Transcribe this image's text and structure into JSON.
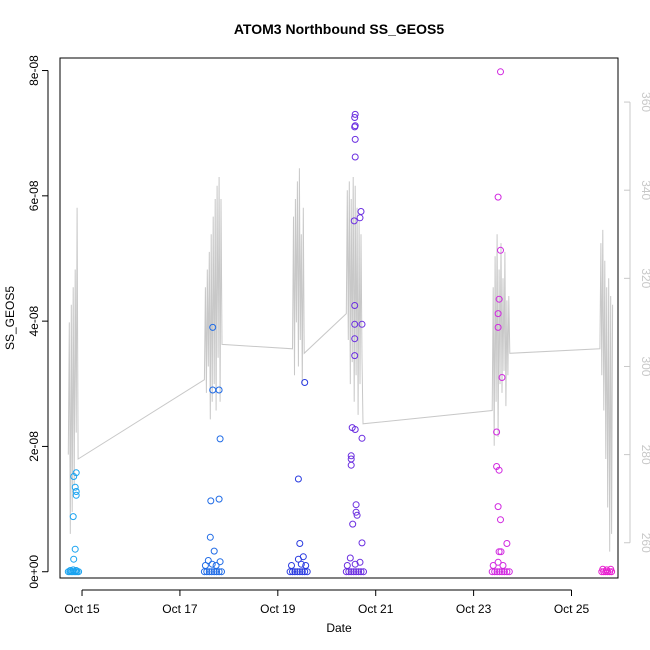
{
  "chart_data": {
    "type": "scatter",
    "title": "ATOM3 Northbound SS_GEOS5",
    "xlabel": "Date",
    "ylabel": "SS_GEOS5",
    "xlim": [
      14.55,
      25.95
    ],
    "ylim": [
      -1e-09,
      8.2e-08
    ],
    "x_ticks": [
      {
        "value": 15,
        "label": "Oct 15"
      },
      {
        "value": 17,
        "label": "Oct 17"
      },
      {
        "value": 19,
        "label": "Oct 19"
      },
      {
        "value": 21,
        "label": "Oct 21"
      },
      {
        "value": 23,
        "label": "Oct 23"
      },
      {
        "value": 25,
        "label": "Oct 25"
      }
    ],
    "y_ticks": [
      {
        "value": 0,
        "label": "0e+00"
      },
      {
        "value": 2e-08,
        "label": "2e-08"
      },
      {
        "value": 4e-08,
        "label": "4e-08"
      },
      {
        "value": 6e-08,
        "label": "6e-08"
      },
      {
        "value": 8e-08,
        "label": "8e-08"
      }
    ],
    "y2lim": [
      252,
      370
    ],
    "y2_ticks": [
      {
        "value": 260,
        "label": "260"
      },
      {
        "value": 280,
        "label": "280"
      },
      {
        "value": 300,
        "label": "300"
      },
      {
        "value": 320,
        "label": "320"
      },
      {
        "value": 340,
        "label": "340"
      },
      {
        "value": 360,
        "label": "360"
      }
    ],
    "grid": false,
    "point_colors": [
      "#1aa3f0",
      "#1f6be6",
      "#2a3be0",
      "#6a2de0",
      "#d128e0",
      "#e81fd0"
    ],
    "line_color": "#c8c8c8",
    "scatter_points": [
      {
        "x": 14.72,
        "y": 0.0,
        "c": 0
      },
      {
        "x": 14.75,
        "y": 0.0,
        "c": 0
      },
      {
        "x": 14.78,
        "y": 0.0,
        "c": 0
      },
      {
        "x": 14.81,
        "y": 0.0,
        "c": 0
      },
      {
        "x": 14.84,
        "y": 0.0,
        "c": 0
      },
      {
        "x": 14.87,
        "y": 0.0,
        "c": 0
      },
      {
        "x": 14.9,
        "y": 0.0,
        "c": 0
      },
      {
        "x": 14.93,
        "y": 0.0,
        "c": 0
      },
      {
        "x": 14.76,
        "y": 2e-10,
        "c": 0
      },
      {
        "x": 14.82,
        "y": 3e-10,
        "c": 0
      },
      {
        "x": 14.88,
        "y": 2e-10,
        "c": 0
      },
      {
        "x": 14.82,
        "y": 8.8e-09,
        "c": 0
      },
      {
        "x": 14.83,
        "y": 1.52e-08,
        "c": 0
      },
      {
        "x": 14.86,
        "y": 1.35e-08,
        "c": 0
      },
      {
        "x": 14.88,
        "y": 1.58e-08,
        "c": 0
      },
      {
        "x": 14.88,
        "y": 1.28e-08,
        "c": 0
      },
      {
        "x": 14.88,
        "y": 1.22e-08,
        "c": 0
      },
      {
        "x": 14.86,
        "y": 3.6e-09,
        "c": 0
      },
      {
        "x": 14.83,
        "y": 2e-09,
        "c": 0
      },
      {
        "x": 17.5,
        "y": 0.0,
        "c": 1
      },
      {
        "x": 17.55,
        "y": 0.0,
        "c": 1
      },
      {
        "x": 17.6,
        "y": 0.0,
        "c": 1
      },
      {
        "x": 17.65,
        "y": 0.0,
        "c": 1
      },
      {
        "x": 17.7,
        "y": 0.0,
        "c": 1
      },
      {
        "x": 17.75,
        "y": 0.0,
        "c": 1
      },
      {
        "x": 17.8,
        "y": 0.0,
        "c": 1
      },
      {
        "x": 17.85,
        "y": 0.0,
        "c": 1
      },
      {
        "x": 17.52,
        "y": 1e-09,
        "c": 1
      },
      {
        "x": 17.58,
        "y": 1.8e-09,
        "c": 1
      },
      {
        "x": 17.66,
        "y": 1.2e-09,
        "c": 1
      },
      {
        "x": 17.74,
        "y": 1e-09,
        "c": 1
      },
      {
        "x": 17.82,
        "y": 1.6e-09,
        "c": 1
      },
      {
        "x": 17.62,
        "y": 5.5e-09,
        "c": 1
      },
      {
        "x": 17.7,
        "y": 3.3e-09,
        "c": 1
      },
      {
        "x": 17.63,
        "y": 1.13e-08,
        "c": 1
      },
      {
        "x": 17.8,
        "y": 1.16e-08,
        "c": 1
      },
      {
        "x": 17.82,
        "y": 2.12e-08,
        "c": 1
      },
      {
        "x": 17.67,
        "y": 2.9e-08,
        "c": 1
      },
      {
        "x": 17.8,
        "y": 2.9e-08,
        "c": 1
      },
      {
        "x": 17.67,
        "y": 3.9e-08,
        "c": 1
      },
      {
        "x": 19.25,
        "y": 0.0,
        "c": 2
      },
      {
        "x": 19.3,
        "y": 0.0,
        "c": 2
      },
      {
        "x": 19.35,
        "y": 0.0,
        "c": 2
      },
      {
        "x": 19.4,
        "y": 0.0,
        "c": 2
      },
      {
        "x": 19.45,
        "y": 0.0,
        "c": 2
      },
      {
        "x": 19.5,
        "y": 0.0,
        "c": 2
      },
      {
        "x": 19.55,
        "y": 0.0,
        "c": 2
      },
      {
        "x": 19.6,
        "y": 0.0,
        "c": 2
      },
      {
        "x": 19.28,
        "y": 1e-09,
        "c": 2
      },
      {
        "x": 19.42,
        "y": 2e-09,
        "c": 2
      },
      {
        "x": 19.48,
        "y": 1.2e-09,
        "c": 2
      },
      {
        "x": 19.52,
        "y": 2.4e-09,
        "c": 2
      },
      {
        "x": 19.57,
        "y": 1e-09,
        "c": 2
      },
      {
        "x": 19.45,
        "y": 4.5e-09,
        "c": 2
      },
      {
        "x": 19.42,
        "y": 1.48e-08,
        "c": 2
      },
      {
        "x": 19.55,
        "y": 3.02e-08,
        "c": 2
      },
      {
        "x": 20.4,
        "y": 0.0,
        "c": 3
      },
      {
        "x": 20.45,
        "y": 0.0,
        "c": 3
      },
      {
        "x": 20.5,
        "y": 0.0,
        "c": 3
      },
      {
        "x": 20.55,
        "y": 0.0,
        "c": 3
      },
      {
        "x": 20.6,
        "y": 0.0,
        "c": 3
      },
      {
        "x": 20.65,
        "y": 0.0,
        "c": 3
      },
      {
        "x": 20.7,
        "y": 0.0,
        "c": 3
      },
      {
        "x": 20.75,
        "y": 0.0,
        "c": 3
      },
      {
        "x": 20.42,
        "y": 1e-09,
        "c": 3
      },
      {
        "x": 20.48,
        "y": 2.2e-09,
        "c": 3
      },
      {
        "x": 20.58,
        "y": 1.2e-09,
        "c": 3
      },
      {
        "x": 20.68,
        "y": 1.5e-09,
        "c": 3
      },
      {
        "x": 20.72,
        "y": 4.6e-09,
        "c": 3
      },
      {
        "x": 20.53,
        "y": 7.6e-09,
        "c": 3
      },
      {
        "x": 20.6,
        "y": 9.5e-09,
        "c": 3
      },
      {
        "x": 20.62,
        "y": 9e-09,
        "c": 3
      },
      {
        "x": 20.6,
        "y": 1.07e-08,
        "c": 3
      },
      {
        "x": 20.5,
        "y": 1.7e-08,
        "c": 3
      },
      {
        "x": 20.5,
        "y": 1.8e-08,
        "c": 3
      },
      {
        "x": 20.5,
        "y": 1.85e-08,
        "c": 3
      },
      {
        "x": 20.52,
        "y": 2.3e-08,
        "c": 3
      },
      {
        "x": 20.58,
        "y": 2.27e-08,
        "c": 3
      },
      {
        "x": 20.72,
        "y": 2.13e-08,
        "c": 3
      },
      {
        "x": 20.57,
        "y": 3.45e-08,
        "c": 3
      },
      {
        "x": 20.57,
        "y": 3.72e-08,
        "c": 3
      },
      {
        "x": 20.57,
        "y": 3.95e-08,
        "c": 3
      },
      {
        "x": 20.57,
        "y": 4.25e-08,
        "c": 3
      },
      {
        "x": 20.72,
        "y": 3.95e-08,
        "c": 3
      },
      {
        "x": 20.56,
        "y": 5.6e-08,
        "c": 3
      },
      {
        "x": 20.68,
        "y": 5.65e-08,
        "c": 3
      },
      {
        "x": 20.7,
        "y": 5.75e-08,
        "c": 3
      },
      {
        "x": 20.58,
        "y": 6.62e-08,
        "c": 3
      },
      {
        "x": 20.58,
        "y": 6.9e-08,
        "c": 3
      },
      {
        "x": 20.57,
        "y": 7.1e-08,
        "c": 3
      },
      {
        "x": 20.58,
        "y": 7.12e-08,
        "c": 3
      },
      {
        "x": 20.57,
        "y": 7.25e-08,
        "c": 3
      },
      {
        "x": 20.58,
        "y": 7.3e-08,
        "c": 3
      },
      {
        "x": 23.38,
        "y": 0.0,
        "c": 4
      },
      {
        "x": 23.43,
        "y": 0.0,
        "c": 4
      },
      {
        "x": 23.48,
        "y": 0.0,
        "c": 4
      },
      {
        "x": 23.53,
        "y": 0.0,
        "c": 4
      },
      {
        "x": 23.58,
        "y": 0.0,
        "c": 4
      },
      {
        "x": 23.63,
        "y": 0.0,
        "c": 4
      },
      {
        "x": 23.68,
        "y": 0.0,
        "c": 4
      },
      {
        "x": 23.73,
        "y": 0.0,
        "c": 4
      },
      {
        "x": 23.4,
        "y": 1e-09,
        "c": 4
      },
      {
        "x": 23.5,
        "y": 1.5e-09,
        "c": 4
      },
      {
        "x": 23.6,
        "y": 1e-09,
        "c": 4
      },
      {
        "x": 23.52,
        "y": 3.2e-09,
        "c": 4
      },
      {
        "x": 23.56,
        "y": 3.2e-09,
        "c": 4
      },
      {
        "x": 23.68,
        "y": 4.5e-09,
        "c": 4
      },
      {
        "x": 23.55,
        "y": 8.3e-09,
        "c": 4
      },
      {
        "x": 23.5,
        "y": 1.04e-08,
        "c": 4
      },
      {
        "x": 23.47,
        "y": 1.68e-08,
        "c": 4
      },
      {
        "x": 23.52,
        "y": 1.62e-08,
        "c": 4
      },
      {
        "x": 23.47,
        "y": 2.23e-08,
        "c": 4
      },
      {
        "x": 23.58,
        "y": 3.1e-08,
        "c": 4
      },
      {
        "x": 23.5,
        "y": 3.9e-08,
        "c": 4
      },
      {
        "x": 23.5,
        "y": 4.12e-08,
        "c": 4
      },
      {
        "x": 23.52,
        "y": 4.35e-08,
        "c": 4
      },
      {
        "x": 23.55,
        "y": 5.13e-08,
        "c": 4
      },
      {
        "x": 23.5,
        "y": 5.98e-08,
        "c": 4
      },
      {
        "x": 23.55,
        "y": 7.98e-08,
        "c": 4
      },
      {
        "x": 25.62,
        "y": 0.0,
        "c": 5
      },
      {
        "x": 25.66,
        "y": 0.0,
        "c": 5
      },
      {
        "x": 25.7,
        "y": 0.0,
        "c": 5
      },
      {
        "x": 25.74,
        "y": 0.0,
        "c": 5
      },
      {
        "x": 25.78,
        "y": 0.0,
        "c": 5
      },
      {
        "x": 25.82,
        "y": 0.0,
        "c": 5
      },
      {
        "x": 25.64,
        "y": 4e-10,
        "c": 5
      },
      {
        "x": 25.72,
        "y": 3e-10,
        "c": 5
      },
      {
        "x": 25.8,
        "y": 4e-10,
        "c": 5
      }
    ],
    "line_points": [
      [
        14.72,
        280
      ],
      [
        14.74,
        310
      ],
      [
        14.76,
        262
      ],
      [
        14.78,
        314
      ],
      [
        14.8,
        267
      ],
      [
        14.82,
        318
      ],
      [
        14.84,
        273
      ],
      [
        14.86,
        322
      ],
      [
        14.88,
        285
      ],
      [
        14.9,
        336
      ],
      [
        14.92,
        279
      ],
      [
        17.5,
        297
      ],
      [
        17.52,
        318
      ],
      [
        17.54,
        294
      ],
      [
        17.56,
        322
      ],
      [
        17.58,
        300
      ],
      [
        17.6,
        326
      ],
      [
        17.62,
        288
      ],
      [
        17.64,
        330
      ],
      [
        17.66,
        292
      ],
      [
        17.68,
        334
      ],
      [
        17.7,
        296
      ],
      [
        17.72,
        338
      ],
      [
        17.74,
        290
      ],
      [
        17.76,
        341
      ],
      [
        17.78,
        302
      ],
      [
        17.8,
        343
      ],
      [
        17.82,
        292
      ],
      [
        17.84,
        338
      ],
      [
        17.86,
        305
      ],
      [
        19.3,
        304
      ],
      [
        19.32,
        334
      ],
      [
        19.34,
        298
      ],
      [
        19.36,
        338
      ],
      [
        19.38,
        310
      ],
      [
        19.4,
        342
      ],
      [
        19.42,
        300
      ],
      [
        19.44,
        345
      ],
      [
        19.46,
        306
      ],
      [
        19.48,
        330
      ],
      [
        19.5,
        296
      ],
      [
        19.52,
        336
      ],
      [
        19.54,
        303
      ],
      [
        20.4,
        312
      ],
      [
        20.42,
        340
      ],
      [
        20.44,
        306
      ],
      [
        20.46,
        342
      ],
      [
        20.48,
        296
      ],
      [
        20.5,
        338
      ],
      [
        20.52,
        301
      ],
      [
        20.54,
        343
      ],
      [
        20.56,
        292
      ],
      [
        20.58,
        341
      ],
      [
        20.6,
        298
      ],
      [
        20.62,
        336
      ],
      [
        20.64,
        289
      ],
      [
        20.66,
        333
      ],
      [
        20.68,
        296
      ],
      [
        20.7,
        330
      ],
      [
        20.72,
        302
      ],
      [
        20.74,
        287
      ],
      [
        23.38,
        290
      ],
      [
        23.4,
        318
      ],
      [
        23.42,
        282
      ],
      [
        23.44,
        325
      ],
      [
        23.46,
        292
      ],
      [
        23.48,
        330
      ],
      [
        23.5,
        284
      ],
      [
        23.52,
        322
      ],
      [
        23.54,
        296
      ],
      [
        23.56,
        328
      ],
      [
        23.58,
        294
      ],
      [
        23.6,
        320
      ],
      [
        23.62,
        299
      ],
      [
        23.64,
        326
      ],
      [
        23.66,
        291
      ],
      [
        23.68,
        315
      ],
      [
        23.7,
        298
      ],
      [
        23.72,
        316
      ],
      [
        23.74,
        303
      ],
      [
        25.58,
        304
      ],
      [
        25.6,
        328
      ],
      [
        25.62,
        298
      ],
      [
        25.64,
        331
      ],
      [
        25.66,
        290
      ],
      [
        25.68,
        324
      ],
      [
        25.7,
        279
      ],
      [
        25.72,
        318
      ],
      [
        25.74,
        268
      ],
      [
        25.76,
        320
      ],
      [
        25.78,
        258
      ],
      [
        25.8,
        316
      ],
      [
        25.82,
        262
      ],
      [
        25.84,
        314
      ]
    ]
  }
}
